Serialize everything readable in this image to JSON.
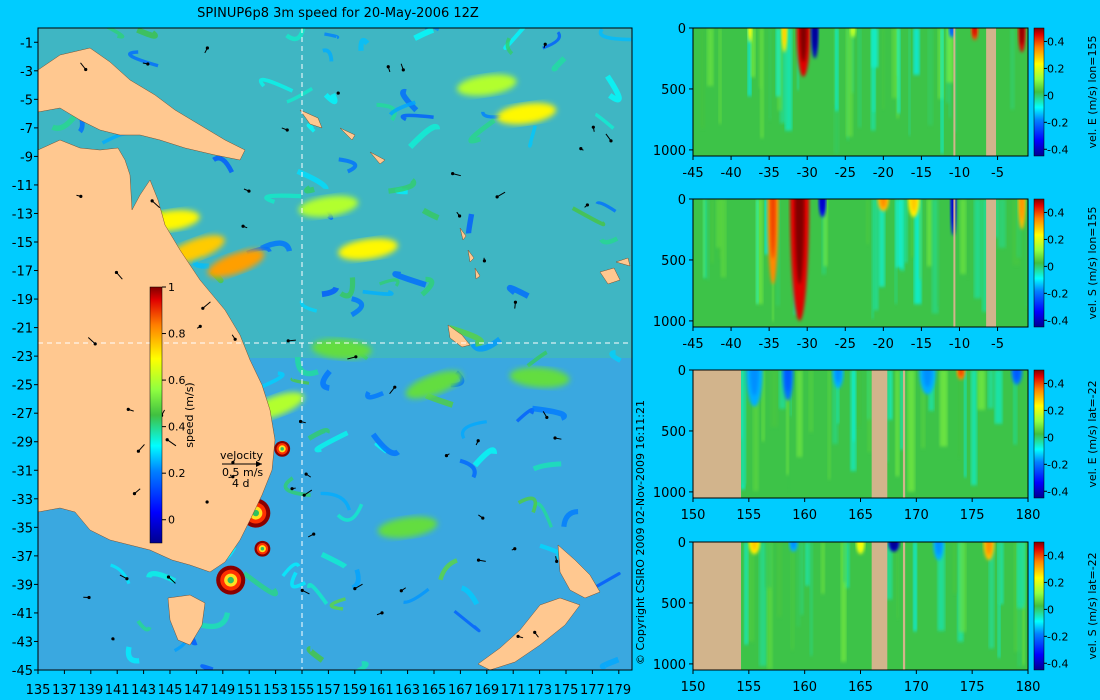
{
  "chart_data": [
    {
      "type": "heatmap",
      "title": "SPINUP6p8 3m speed for 20-May-2006 12Z",
      "xlabel": "",
      "ylabel": "",
      "x_ticks": [
        135,
        137,
        139,
        141,
        143,
        145,
        147,
        149,
        151,
        153,
        155,
        157,
        159,
        161,
        163,
        165,
        167,
        169,
        171,
        173,
        175,
        177,
        179
      ],
      "y_ticks": [
        -1,
        -3,
        -5,
        -7,
        -9,
        -11,
        -13,
        -15,
        -17,
        -19,
        -21,
        -23,
        -25,
        -27,
        -29,
        -31,
        -33,
        -35,
        -37,
        -39,
        -41,
        -43,
        -45
      ],
      "xlim": [
        135,
        180
      ],
      "ylim": [
        -45,
        0
      ],
      "colorbar": {
        "label": "speed (m/s)",
        "ticks": [
          0,
          0.2,
          0.4,
          0.6,
          0.8,
          1
        ],
        "range": [
          -0.1,
          1
        ]
      },
      "reference_lines": {
        "lon": 155,
        "lat": -22
      },
      "legend_vector": {
        "title": "velocity",
        "speed": "0.5 m/s",
        "time": "4 d"
      },
      "copyright": "© Copyright CSIRO 2009   02-Nov-2009 16:11:21",
      "features": {
        "eddies": [
          {
            "lon": 151.5,
            "lat": -34.0,
            "r": 1.1
          },
          {
            "lon": 149.6,
            "lat": -38.7,
            "r": 1.1
          },
          {
            "lon": 152.0,
            "lat": -36.5,
            "r": 0.6
          },
          {
            "lon": 153.5,
            "lat": -29.5,
            "r": 0.6
          }
        ],
        "jets": [
          {
            "lon": 147,
            "lat": -15.5,
            "level": 0.75
          },
          {
            "lon": 150,
            "lat": -16.5,
            "level": 0.8
          },
          {
            "lon": 160,
            "lat": -15.5,
            "level": 0.7
          },
          {
            "lon": 157,
            "lat": -12.5,
            "level": 0.6
          },
          {
            "lon": 169,
            "lat": -4.0,
            "level": 0.6
          },
          {
            "lon": 172,
            "lat": -6.0,
            "level": 0.7
          },
          {
            "lon": 153,
            "lat": -26.5,
            "level": 0.6
          },
          {
            "lon": 165,
            "lat": -25.0,
            "level": 0.5
          },
          {
            "lon": 173,
            "lat": -24.5,
            "level": 0.5
          },
          {
            "lon": 145,
            "lat": -13.5,
            "level": 0.7
          },
          {
            "lon": 163,
            "lat": -35.0,
            "level": 0.5
          },
          {
            "lon": 158,
            "lat": -22.5,
            "level": 0.5
          }
        ]
      }
    },
    {
      "type": "heatmap",
      "title": "",
      "xlabel": "",
      "ylabel": "",
      "colorbar_label": "vel. E (m/s) lon=155",
      "x_ticks": [
        -45,
        -40,
        -35,
        -30,
        -25,
        -20,
        -15,
        -10,
        -5
      ],
      "y_ticks": [
        0,
        500,
        1000
      ],
      "xlim": [
        -45,
        -1
      ],
      "ylim": [
        1050,
        0
      ],
      "colorbar_ticks": [
        0.4,
        0.2,
        0,
        -0.2,
        -0.4
      ],
      "colorbar_range": [
        -0.45,
        0.5
      ],
      "land": [
        [
          -10.8,
          -10.6
        ],
        [
          -6.5,
          -5.2
        ]
      ],
      "features": [
        {
          "x": -30.5,
          "depth": 400,
          "width": 1.8,
          "value": 0.45
        },
        {
          "x": -29.0,
          "depth": 250,
          "width": 1.0,
          "value": -0.4
        },
        {
          "x": -33.0,
          "depth": 200,
          "width": 0.8,
          "value": 0.25
        },
        {
          "x": -8.0,
          "depth": 100,
          "width": 1.0,
          "value": 0.4
        },
        {
          "x": -11.0,
          "depth": 80,
          "width": 0.8,
          "value": -0.2
        },
        {
          "x": -1.8,
          "depth": 200,
          "width": 1.0,
          "value": 0.45
        },
        {
          "x": -37.5,
          "depth": 120,
          "width": 0.6,
          "value": 0.2
        },
        {
          "x": -24.0,
          "depth": 80,
          "width": 0.8,
          "value": 0.15
        }
      ]
    },
    {
      "type": "heatmap",
      "title": "",
      "xlabel": "",
      "ylabel": "",
      "colorbar_label": "vel. S (m/s) lon=155",
      "x_ticks": [
        -45,
        -40,
        -35,
        -30,
        -25,
        -20,
        -15,
        -10,
        -5
      ],
      "y_ticks": [
        0,
        500,
        1000
      ],
      "xlim": [
        -45,
        -1
      ],
      "ylim": [
        1050,
        0
      ],
      "colorbar_ticks": [
        0.4,
        0.2,
        0,
        -0.2,
        -0.4
      ],
      "colorbar_range": [
        -0.45,
        0.5
      ],
      "land": [
        [
          -10.8,
          -10.6
        ],
        [
          -6.5,
          -5.2
        ]
      ],
      "features": [
        {
          "x": -31.0,
          "depth": 1000,
          "width": 2.5,
          "value": 0.45
        },
        {
          "x": -34.5,
          "depth": 700,
          "width": 1.5,
          "value": 0.35
        },
        {
          "x": -28.0,
          "depth": 150,
          "width": 1.0,
          "value": -0.35
        },
        {
          "x": -10.8,
          "depth": 300,
          "width": 0.8,
          "value": -0.35
        },
        {
          "x": -16.0,
          "depth": 150,
          "width": 1.5,
          "value": 0.25
        },
        {
          "x": -20.0,
          "depth": 100,
          "width": 1.5,
          "value": 0.3
        },
        {
          "x": -1.8,
          "depth": 250,
          "width": 1.0,
          "value": 0.3
        }
      ]
    },
    {
      "type": "heatmap",
      "title": "",
      "xlabel": "",
      "ylabel": "",
      "colorbar_label": "vel. E (m/s) lat=-22",
      "x_ticks": [
        150,
        155,
        160,
        165,
        170,
        175,
        180
      ],
      "y_ticks": [
        0,
        500,
        1000
      ],
      "xlim": [
        150,
        180
      ],
      "ylim": [
        1050,
        0
      ],
      "colorbar_ticks": [
        0.4,
        0.2,
        0,
        -0.2,
        -0.4
      ],
      "colorbar_range": [
        -0.45,
        0.5
      ],
      "land": [
        [
          150,
          154.3
        ],
        [
          166.0,
          167.4
        ],
        [
          168.8,
          169.0
        ]
      ],
      "features": [
        {
          "x": 155.5,
          "depth": 300,
          "width": 1.5,
          "value": -0.15
        },
        {
          "x": 158.5,
          "depth": 250,
          "width": 1.0,
          "value": -0.2
        },
        {
          "x": 163.0,
          "depth": 150,
          "width": 1.0,
          "value": -0.15
        },
        {
          "x": 171.0,
          "depth": 200,
          "width": 1.5,
          "value": -0.15
        },
        {
          "x": 174.0,
          "depth": 80,
          "width": 0.8,
          "value": 0.35
        },
        {
          "x": 179.0,
          "depth": 120,
          "width": 1.0,
          "value": -0.2
        }
      ]
    },
    {
      "type": "heatmap",
      "title": "",
      "xlabel": "",
      "ylabel": "",
      "colorbar_label": "vel. S (m/s) lat=-22",
      "x_ticks": [
        150,
        155,
        160,
        165,
        170,
        175,
        180
      ],
      "y_ticks": [
        0,
        500,
        1000
      ],
      "xlim": [
        150,
        180
      ],
      "ylim": [
        1050,
        0
      ],
      "colorbar_ticks": [
        0.4,
        0.2,
        0,
        -0.2,
        -0.4
      ],
      "colorbar_range": [
        -0.45,
        0.5
      ],
      "land": [
        [
          150,
          154.3
        ],
        [
          166.0,
          167.4
        ],
        [
          168.8,
          169.0
        ]
      ],
      "features": [
        {
          "x": 168.0,
          "depth": 80,
          "width": 1.0,
          "value": -0.4
        },
        {
          "x": 155.5,
          "depth": 100,
          "width": 1.0,
          "value": 0.25
        },
        {
          "x": 159.0,
          "depth": 80,
          "width": 0.8,
          "value": -0.15
        },
        {
          "x": 176.5,
          "depth": 150,
          "width": 1.0,
          "value": 0.3
        },
        {
          "x": 172.0,
          "depth": 150,
          "width": 1.0,
          "value": -0.15
        },
        {
          "x": 165.0,
          "depth": 100,
          "width": 0.8,
          "value": 0.2
        }
      ]
    }
  ]
}
